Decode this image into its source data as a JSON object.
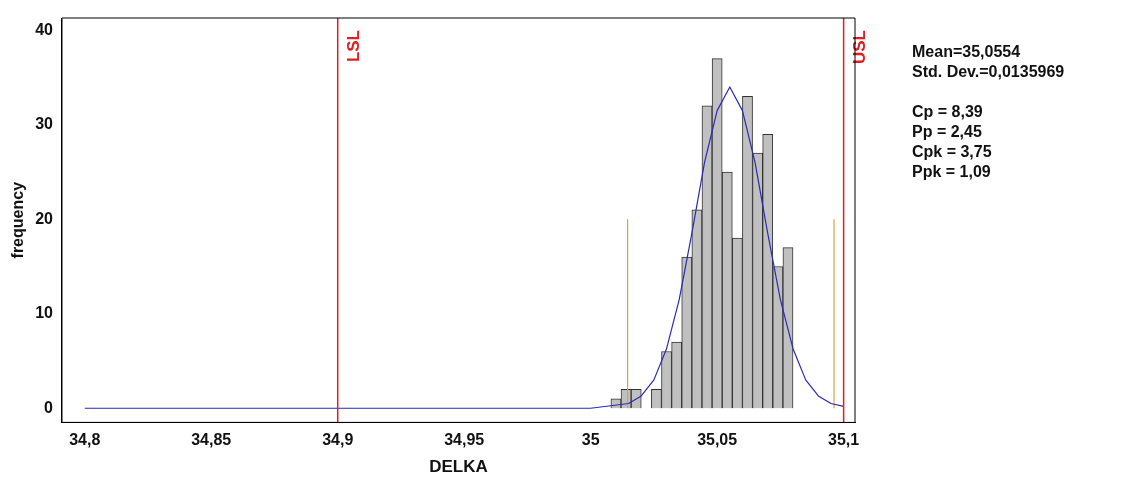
{
  "chart_data": {
    "type": "histogram",
    "xlabel": "DELKA",
    "ylabel": "frequency",
    "bins": [
      35.008,
      35.012,
      35.016,
      35.02,
      35.024,
      35.028,
      35.032,
      35.036,
      35.04,
      35.044,
      35.048,
      35.052,
      35.056,
      35.06,
      35.064,
      35.068,
      35.072,
      35.076,
      35.08
    ],
    "values": [
      1,
      2,
      2,
      0,
      2,
      6,
      7,
      16,
      21,
      32,
      37,
      25,
      18,
      33,
      27,
      29,
      15,
      17
    ],
    "color": "#c0c0c0",
    "series": [
      {
        "type": "line",
        "color": "#2a2ab8",
        "x": [
          34.8,
          35.0,
          35.015,
          35.02,
          35.025,
          35.03,
          35.035,
          35.04,
          35.045,
          35.05,
          35.055,
          35.06,
          35.065,
          35.07,
          35.075,
          35.08,
          35.085,
          35.09,
          35.095,
          35.1
        ],
        "values": [
          0,
          0,
          0.5,
          1.3,
          3,
          6.3,
          11.5,
          18.5,
          26,
          31.5,
          34,
          31.5,
          26,
          18.5,
          11.5,
          6.3,
          3,
          1.3,
          0.5,
          0.2
        ]
      },
      {
        "type": "line",
        "color": "#e0a040",
        "x": [
          35.0146,
          35.0146
        ],
        "values": [
          0,
          20
        ]
      },
      {
        "type": "line",
        "color": "#e0a040",
        "x": [
          35.0962,
          35.0962
        ],
        "values": [
          0,
          20
        ]
      }
    ],
    "ref_lines": [
      {
        "axis": "x",
        "value": 34.9,
        "label": "LSL",
        "color": "#e02020"
      },
      {
        "axis": "x",
        "value": 35.1,
        "label": "USL",
        "color": "#e02020"
      }
    ],
    "xlim": [
      34.791,
      35.1045
    ],
    "xticks": [
      {
        "value": 34.8,
        "label": "34,8"
      },
      {
        "value": 34.85,
        "label": "34,85"
      },
      {
        "value": 34.9,
        "label": "34,9"
      },
      {
        "value": 34.95,
        "label": "34,95"
      },
      {
        "value": 35,
        "label": "35"
      },
      {
        "value": 35.05,
        "label": "35,05"
      },
      {
        "value": 35.1,
        "label": "35,1"
      }
    ],
    "ylim": [
      -1.5,
      41.3
    ],
    "yticks": [
      0,
      10,
      20,
      30,
      40
    ],
    "annotations": [
      "Mean=35,0554",
      "Std. Dev.=0,0135969",
      "Cp = 8,39",
      "Pp = 2,45",
      "Cpk = 3,75",
      "Ppk = 1,09"
    ]
  }
}
